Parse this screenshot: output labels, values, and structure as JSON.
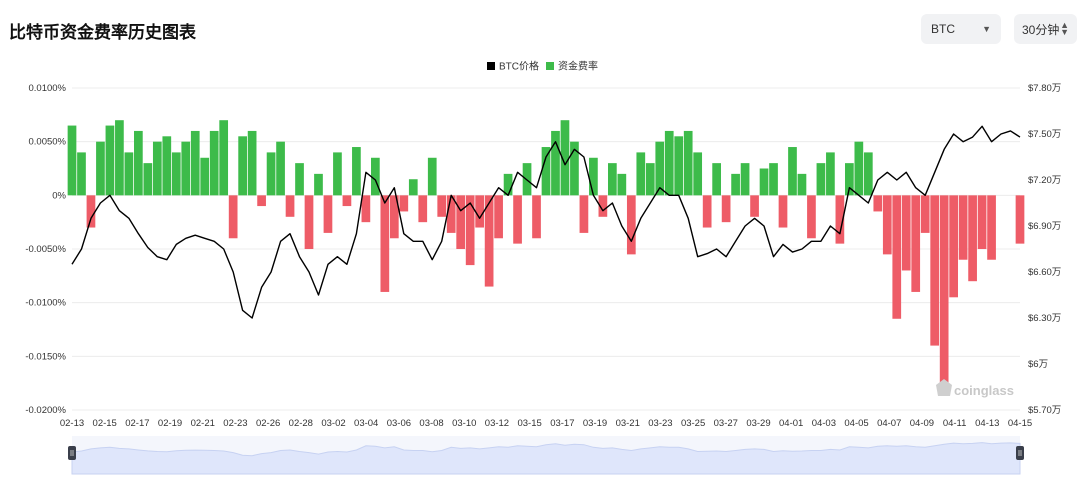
{
  "header": {
    "title": "比特币资金费率历史图表",
    "symbol_select": "BTC",
    "interval_select": "30分钟"
  },
  "watermark": "coinglass",
  "colors": {
    "price": "#000000",
    "funding_pos": "#3dbb4a",
    "funding_neg": "#ee5c67",
    "navigator": "#dfe6fb"
  },
  "chart_data": {
    "type": "bar+line",
    "legend": [
      {
        "name": "BTC价格",
        "color": "#000000"
      },
      {
        "name": "资金费率",
        "color": "#3dbb4a"
      }
    ],
    "legend_position": "top-center",
    "x_tick_labels": [
      "02-13",
      "02-15",
      "02-17",
      "02-19",
      "02-21",
      "02-23",
      "02-26",
      "02-28",
      "03-02",
      "03-04",
      "03-06",
      "03-08",
      "03-10",
      "03-12",
      "03-15",
      "03-17",
      "03-19",
      "03-21",
      "03-23",
      "03-25",
      "03-27",
      "03-29",
      "04-01",
      "04-03",
      "04-05",
      "04-07",
      "04-09",
      "04-11",
      "04-13",
      "04-15"
    ],
    "y_left": {
      "label": "资金费率",
      "unit": "%",
      "range": [
        -0.02,
        0.01
      ],
      "ticks": [
        0.01,
        0.005,
        0,
        -0.005,
        -0.01,
        -0.015,
        -0.02
      ],
      "tick_labels": [
        "0.0100%",
        "0.0050%",
        "0%",
        "-0.0050%",
        "-0.0100%",
        "-0.0150%",
        "-0.0200%"
      ]
    },
    "y_right": {
      "label": "BTC价格",
      "unit": "USD",
      "range": [
        57000,
        78000
      ],
      "ticks": [
        78000,
        75000,
        72000,
        69000,
        66000,
        63000,
        60000,
        57000
      ],
      "tick_labels": [
        "$7.80万",
        "$7.50万",
        "$7.20万",
        "$6.90万",
        "$6.60万",
        "$6.30万",
        "$6万",
        "$5.70万"
      ]
    },
    "grid": true,
    "funding_rate_series": [
      {
        "t": 0.0,
        "v": 0.0065
      },
      {
        "t": 0.01,
        "v": 0.004
      },
      {
        "t": 0.02,
        "v": -0.003
      },
      {
        "t": 0.03,
        "v": 0.005
      },
      {
        "t": 0.04,
        "v": 0.0065
      },
      {
        "t": 0.05,
        "v": 0.007
      },
      {
        "t": 0.06,
        "v": 0.004
      },
      {
        "t": 0.07,
        "v": 0.006
      },
      {
        "t": 0.08,
        "v": 0.003
      },
      {
        "t": 0.09,
        "v": 0.005
      },
      {
        "t": 0.1,
        "v": 0.0055
      },
      {
        "t": 0.11,
        "v": 0.004
      },
      {
        "t": 0.12,
        "v": 0.005
      },
      {
        "t": 0.13,
        "v": 0.006
      },
      {
        "t": 0.14,
        "v": 0.0035
      },
      {
        "t": 0.15,
        "v": 0.006
      },
      {
        "t": 0.16,
        "v": 0.007
      },
      {
        "t": 0.17,
        "v": -0.004
      },
      {
        "t": 0.18,
        "v": 0.0055
      },
      {
        "t": 0.19,
        "v": 0.006
      },
      {
        "t": 0.2,
        "v": -0.001
      },
      {
        "t": 0.21,
        "v": 0.004
      },
      {
        "t": 0.22,
        "v": 0.005
      },
      {
        "t": 0.23,
        "v": -0.002
      },
      {
        "t": 0.24,
        "v": 0.003
      },
      {
        "t": 0.25,
        "v": -0.005
      },
      {
        "t": 0.26,
        "v": 0.002
      },
      {
        "t": 0.27,
        "v": -0.0035
      },
      {
        "t": 0.28,
        "v": 0.004
      },
      {
        "t": 0.29,
        "v": -0.001
      },
      {
        "t": 0.3,
        "v": 0.0045
      },
      {
        "t": 0.31,
        "v": -0.0025
      },
      {
        "t": 0.32,
        "v": 0.0035
      },
      {
        "t": 0.33,
        "v": -0.009
      },
      {
        "t": 0.34,
        "v": -0.004
      },
      {
        "t": 0.35,
        "v": -0.0015
      },
      {
        "t": 0.36,
        "v": 0.0015
      },
      {
        "t": 0.37,
        "v": -0.0025
      },
      {
        "t": 0.38,
        "v": 0.0035
      },
      {
        "t": 0.39,
        "v": -0.002
      },
      {
        "t": 0.4,
        "v": -0.0035
      },
      {
        "t": 0.41,
        "v": -0.005
      },
      {
        "t": 0.42,
        "v": -0.0065
      },
      {
        "t": 0.43,
        "v": -0.003
      },
      {
        "t": 0.44,
        "v": -0.0085
      },
      {
        "t": 0.45,
        "v": -0.004
      },
      {
        "t": 0.46,
        "v": 0.002
      },
      {
        "t": 0.47,
        "v": -0.0045
      },
      {
        "t": 0.48,
        "v": 0.003
      },
      {
        "t": 0.49,
        "v": -0.004
      },
      {
        "t": 0.5,
        "v": 0.0045
      },
      {
        "t": 0.51,
        "v": 0.006
      },
      {
        "t": 0.52,
        "v": 0.007
      },
      {
        "t": 0.53,
        "v": 0.005
      },
      {
        "t": 0.54,
        "v": -0.0035
      },
      {
        "t": 0.55,
        "v": 0.0035
      },
      {
        "t": 0.56,
        "v": -0.002
      },
      {
        "t": 0.57,
        "v": 0.003
      },
      {
        "t": 0.58,
        "v": 0.002
      },
      {
        "t": 0.59,
        "v": -0.0055
      },
      {
        "t": 0.6,
        "v": 0.004
      },
      {
        "t": 0.61,
        "v": 0.003
      },
      {
        "t": 0.62,
        "v": 0.005
      },
      {
        "t": 0.63,
        "v": 0.006
      },
      {
        "t": 0.64,
        "v": 0.0055
      },
      {
        "t": 0.65,
        "v": 0.006
      },
      {
        "t": 0.66,
        "v": 0.004
      },
      {
        "t": 0.67,
        "v": -0.003
      },
      {
        "t": 0.68,
        "v": 0.003
      },
      {
        "t": 0.69,
        "v": -0.0025
      },
      {
        "t": 0.7,
        "v": 0.002
      },
      {
        "t": 0.71,
        "v": 0.003
      },
      {
        "t": 0.72,
        "v": -0.002
      },
      {
        "t": 0.73,
        "v": 0.0025
      },
      {
        "t": 0.74,
        "v": 0.003
      },
      {
        "t": 0.75,
        "v": -0.003
      },
      {
        "t": 0.76,
        "v": 0.0045
      },
      {
        "t": 0.77,
        "v": 0.002
      },
      {
        "t": 0.78,
        "v": -0.004
      },
      {
        "t": 0.79,
        "v": 0.003
      },
      {
        "t": 0.8,
        "v": 0.004
      },
      {
        "t": 0.81,
        "v": -0.0045
      },
      {
        "t": 0.82,
        "v": 0.003
      },
      {
        "t": 0.83,
        "v": 0.005
      },
      {
        "t": 0.84,
        "v": 0.004
      },
      {
        "t": 0.85,
        "v": -0.0015
      },
      {
        "t": 0.86,
        "v": -0.0055
      },
      {
        "t": 0.87,
        "v": -0.0115
      },
      {
        "t": 0.88,
        "v": -0.007
      },
      {
        "t": 0.89,
        "v": -0.009
      },
      {
        "t": 0.9,
        "v": -0.0035
      },
      {
        "t": 0.91,
        "v": -0.014
      },
      {
        "t": 0.92,
        "v": -0.0175
      },
      {
        "t": 0.93,
        "v": -0.0095
      },
      {
        "t": 0.94,
        "v": -0.006
      },
      {
        "t": 0.95,
        "v": -0.008
      },
      {
        "t": 0.96,
        "v": -0.005
      },
      {
        "t": 0.97,
        "v": -0.006
      },
      {
        "t": 1.0,
        "v": -0.0045
      }
    ],
    "btc_price_series": [
      {
        "t": 0.0,
        "v": 66500
      },
      {
        "t": 0.01,
        "v": 67500
      },
      {
        "t": 0.02,
        "v": 69500
      },
      {
        "t": 0.03,
        "v": 70500
      },
      {
        "t": 0.04,
        "v": 71000
      },
      {
        "t": 0.05,
        "v": 70000
      },
      {
        "t": 0.06,
        "v": 69500
      },
      {
        "t": 0.07,
        "v": 68500
      },
      {
        "t": 0.08,
        "v": 67600
      },
      {
        "t": 0.09,
        "v": 67000
      },
      {
        "t": 0.1,
        "v": 66800
      },
      {
        "t": 0.11,
        "v": 67800
      },
      {
        "t": 0.12,
        "v": 68200
      },
      {
        "t": 0.13,
        "v": 68400
      },
      {
        "t": 0.14,
        "v": 68200
      },
      {
        "t": 0.15,
        "v": 68000
      },
      {
        "t": 0.16,
        "v": 67500
      },
      {
        "t": 0.17,
        "v": 66000
      },
      {
        "t": 0.18,
        "v": 63500
      },
      {
        "t": 0.19,
        "v": 63000
      },
      {
        "t": 0.2,
        "v": 65000
      },
      {
        "t": 0.21,
        "v": 66000
      },
      {
        "t": 0.22,
        "v": 68000
      },
      {
        "t": 0.23,
        "v": 68500
      },
      {
        "t": 0.24,
        "v": 67000
      },
      {
        "t": 0.25,
        "v": 66000
      },
      {
        "t": 0.26,
        "v": 64500
      },
      {
        "t": 0.27,
        "v": 66500
      },
      {
        "t": 0.28,
        "v": 67000
      },
      {
        "t": 0.29,
        "v": 66500
      },
      {
        "t": 0.3,
        "v": 68500
      },
      {
        "t": 0.31,
        "v": 72500
      },
      {
        "t": 0.32,
        "v": 72000
      },
      {
        "t": 0.33,
        "v": 70500
      },
      {
        "t": 0.34,
        "v": 71500
      },
      {
        "t": 0.35,
        "v": 68500
      },
      {
        "t": 0.36,
        "v": 68000
      },
      {
        "t": 0.37,
        "v": 68000
      },
      {
        "t": 0.38,
        "v": 66800
      },
      {
        "t": 0.39,
        "v": 68000
      },
      {
        "t": 0.4,
        "v": 71000
      },
      {
        "t": 0.41,
        "v": 70000
      },
      {
        "t": 0.42,
        "v": 70500
      },
      {
        "t": 0.43,
        "v": 69500
      },
      {
        "t": 0.44,
        "v": 70500
      },
      {
        "t": 0.45,
        "v": 71500
      },
      {
        "t": 0.46,
        "v": 71000
      },
      {
        "t": 0.47,
        "v": 72500
      },
      {
        "t": 0.48,
        "v": 72000
      },
      {
        "t": 0.49,
        "v": 71500
      },
      {
        "t": 0.5,
        "v": 73500
      },
      {
        "t": 0.51,
        "v": 74500
      },
      {
        "t": 0.52,
        "v": 73000
      },
      {
        "t": 0.53,
        "v": 74000
      },
      {
        "t": 0.54,
        "v": 73500
      },
      {
        "t": 0.55,
        "v": 71000
      },
      {
        "t": 0.56,
        "v": 70000
      },
      {
        "t": 0.57,
        "v": 70500
      },
      {
        "t": 0.58,
        "v": 69000
      },
      {
        "t": 0.59,
        "v": 68000
      },
      {
        "t": 0.6,
        "v": 69500
      },
      {
        "t": 0.61,
        "v": 70500
      },
      {
        "t": 0.62,
        "v": 71500
      },
      {
        "t": 0.63,
        "v": 71000
      },
      {
        "t": 0.64,
        "v": 71000
      },
      {
        "t": 0.65,
        "v": 69500
      },
      {
        "t": 0.66,
        "v": 67000
      },
      {
        "t": 0.67,
        "v": 67200
      },
      {
        "t": 0.68,
        "v": 67500
      },
      {
        "t": 0.69,
        "v": 67000
      },
      {
        "t": 0.7,
        "v": 68000
      },
      {
        "t": 0.71,
        "v": 69000
      },
      {
        "t": 0.72,
        "v": 69500
      },
      {
        "t": 0.73,
        "v": 69000
      },
      {
        "t": 0.74,
        "v": 67000
      },
      {
        "t": 0.75,
        "v": 67800
      },
      {
        "t": 0.76,
        "v": 67300
      },
      {
        "t": 0.77,
        "v": 67500
      },
      {
        "t": 0.78,
        "v": 68000
      },
      {
        "t": 0.79,
        "v": 68000
      },
      {
        "t": 0.8,
        "v": 69000
      },
      {
        "t": 0.81,
        "v": 68500
      },
      {
        "t": 0.82,
        "v": 71500
      },
      {
        "t": 0.83,
        "v": 71000
      },
      {
        "t": 0.84,
        "v": 70500
      },
      {
        "t": 0.85,
        "v": 72000
      },
      {
        "t": 0.86,
        "v": 72500
      },
      {
        "t": 0.87,
        "v": 72000
      },
      {
        "t": 0.88,
        "v": 72500
      },
      {
        "t": 0.89,
        "v": 71500
      },
      {
        "t": 0.9,
        "v": 71000
      },
      {
        "t": 0.91,
        "v": 72500
      },
      {
        "t": 0.92,
        "v": 74000
      },
      {
        "t": 0.93,
        "v": 75000
      },
      {
        "t": 0.94,
        "v": 74500
      },
      {
        "t": 0.95,
        "v": 74800
      },
      {
        "t": 0.96,
        "v": 75500
      },
      {
        "t": 0.97,
        "v": 74500
      },
      {
        "t": 0.98,
        "v": 75000
      },
      {
        "t": 0.99,
        "v": 75200
      },
      {
        "t": 1.0,
        "v": 74800
      }
    ]
  }
}
